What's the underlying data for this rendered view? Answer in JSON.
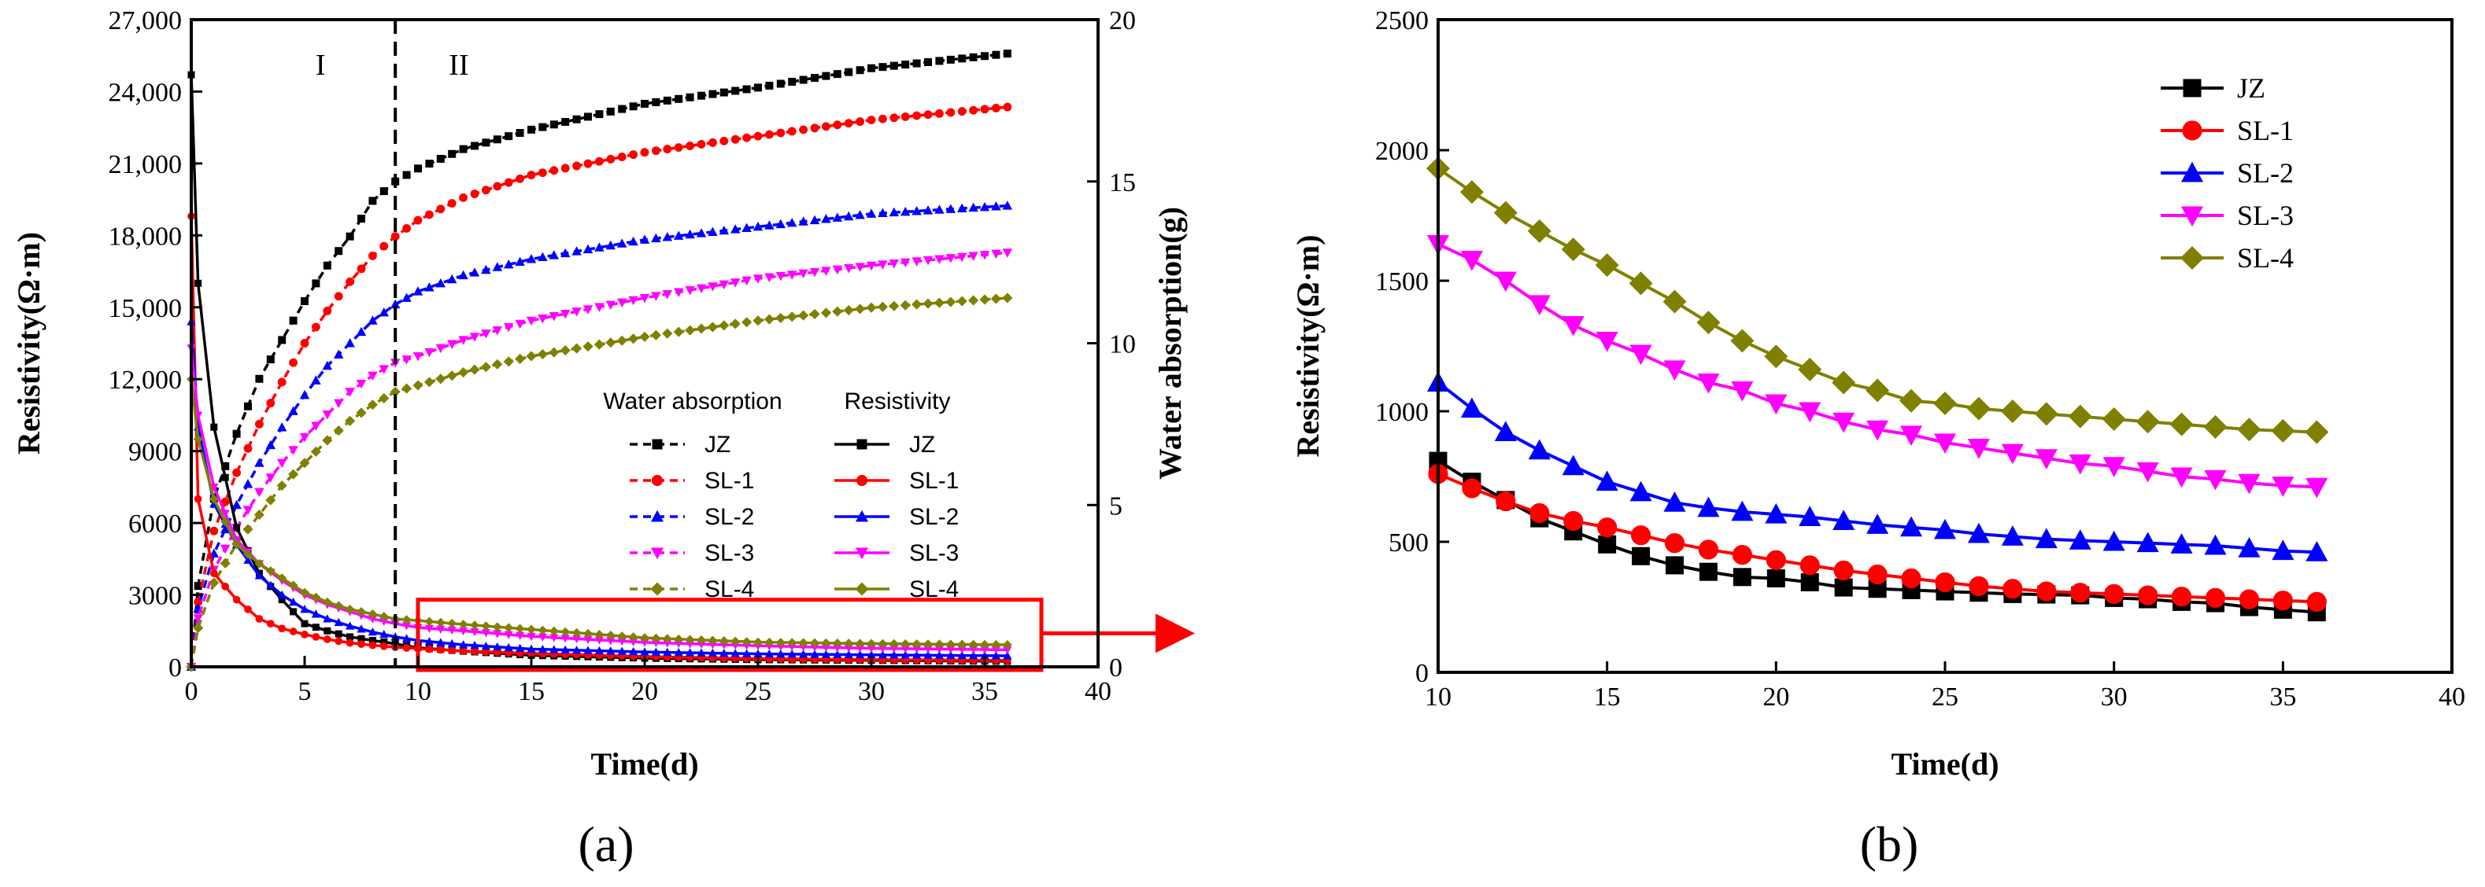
{
  "panel_labels": {
    "a": "(a)",
    "b": "(b)"
  },
  "chart_data": [
    {
      "id": "a",
      "type": "line",
      "title": "",
      "xlabel": "Time(d)",
      "ylabel": "Resistivity(Ω·m)",
      "y2label": "Water absorption(g)",
      "xlim": [
        0,
        40
      ],
      "ylim": [
        0,
        27000
      ],
      "y2lim": [
        0,
        20
      ],
      "xticks": [
        "0",
        "5",
        "10",
        "15",
        "20",
        "25",
        "30",
        "35",
        "40"
      ],
      "yticks": [
        "0",
        "3000",
        "6000",
        "9000",
        "12,000",
        "15,000",
        "18,000",
        "21,000",
        "24,000",
        "27,000"
      ],
      "y2ticks": [
        "0",
        "5",
        "10",
        "15",
        "20"
      ],
      "stage_divider_x": 9,
      "stage_labels": [
        "I",
        "II"
      ],
      "legend_headers": {
        "water": "Water absorption",
        "resistivity": "Resistivity"
      },
      "highlight_box": {
        "x": [
          10,
          37.5
        ],
        "y": [
          0,
          2800
        ]
      },
      "series": [
        {
          "name": "JZ",
          "color": "#000000",
          "marker": "square",
          "resistivity": [
            [
              0,
              24700
            ],
            [
              0.3,
              16000
            ],
            [
              1,
              10000
            ],
            [
              2,
              5800
            ],
            [
              3,
              3900
            ],
            [
              4,
              2800
            ],
            [
              5,
              1800
            ],
            [
              6,
              1500
            ],
            [
              7,
              1250
            ],
            [
              8,
              1100
            ],
            [
              9,
              960
            ],
            [
              10,
              800
            ],
            [
              12,
              650
            ],
            [
              15,
              480
            ],
            [
              20,
              360
            ],
            [
              25,
              300
            ],
            [
              30,
              270
            ],
            [
              36,
              230
            ]
          ],
          "water": [
            [
              0,
              0
            ],
            [
              0.3,
              2.5
            ],
            [
              1,
              5.2
            ],
            [
              2,
              7.2
            ],
            [
              3,
              8.9
            ],
            [
              4,
              10.1
            ],
            [
              5,
              11.3
            ],
            [
              6,
              12.4
            ],
            [
              7,
              13.3
            ],
            [
              8,
              14.4
            ],
            [
              9,
              15.0
            ],
            [
              10,
              15.4
            ],
            [
              12,
              16.0
            ],
            [
              15,
              16.6
            ],
            [
              20,
              17.4
            ],
            [
              25,
              17.9
            ],
            [
              30,
              18.5
            ],
            [
              36,
              18.95
            ]
          ]
        },
        {
          "name": "SL-1",
          "color": "#ff0000",
          "marker": "circle",
          "resistivity": [
            [
              0,
              18800
            ],
            [
              0.3,
              7000
            ],
            [
              1,
              3900
            ],
            [
              2,
              2800
            ],
            [
              3,
              2000
            ],
            [
              4,
              1600
            ],
            [
              5,
              1350
            ],
            [
              6,
              1150
            ],
            [
              7,
              1000
            ],
            [
              8,
              900
            ],
            [
              9,
              820
            ],
            [
              10,
              760
            ],
            [
              12,
              660
            ],
            [
              15,
              560
            ],
            [
              20,
              430
            ],
            [
              25,
              340
            ],
            [
              30,
              300
            ],
            [
              36,
              270
            ]
          ],
          "water": [
            [
              0,
              0
            ],
            [
              0.3,
              2.0
            ],
            [
              1,
              4.2
            ],
            [
              2,
              6.0
            ],
            [
              3,
              7.5
            ],
            [
              4,
              8.8
            ],
            [
              5,
              10.0
            ],
            [
              6,
              11.0
            ],
            [
              7,
              11.9
            ],
            [
              8,
              12.7
            ],
            [
              9,
              13.3
            ],
            [
              10,
              13.8
            ],
            [
              12,
              14.5
            ],
            [
              15,
              15.2
            ],
            [
              20,
              15.9
            ],
            [
              25,
              16.4
            ],
            [
              30,
              16.9
            ],
            [
              36,
              17.3
            ]
          ]
        },
        {
          "name": "SL-2",
          "color": "#0000ff",
          "marker": "triangle-up",
          "resistivity": [
            [
              0,
              14400
            ],
            [
              0.3,
              10000
            ],
            [
              1,
              6800
            ],
            [
              2,
              5100
            ],
            [
              3,
              3800
            ],
            [
              4,
              3000
            ],
            [
              5,
              2400
            ],
            [
              6,
              2000
            ],
            [
              7,
              1700
            ],
            [
              8,
              1450
            ],
            [
              9,
              1250
            ],
            [
              10,
              1100
            ],
            [
              12,
              920
            ],
            [
              15,
              740
            ],
            [
              20,
              620
            ],
            [
              25,
              540
            ],
            [
              30,
              500
            ],
            [
              36,
              460
            ]
          ],
          "water": [
            [
              0,
              0
            ],
            [
              0.3,
              1.8
            ],
            [
              1,
              3.5
            ],
            [
              2,
              5.0
            ],
            [
              3,
              6.3
            ],
            [
              4,
              7.4
            ],
            [
              5,
              8.4
            ],
            [
              6,
              9.3
            ],
            [
              7,
              10.0
            ],
            [
              8,
              10.7
            ],
            [
              9,
              11.2
            ],
            [
              10,
              11.6
            ],
            [
              12,
              12.1
            ],
            [
              15,
              12.6
            ],
            [
              20,
              13.2
            ],
            [
              25,
              13.6
            ],
            [
              30,
              14.0
            ],
            [
              36,
              14.25
            ]
          ]
        },
        {
          "name": "SL-3",
          "color": "#ff00ff",
          "marker": "triangle-down",
          "resistivity": [
            [
              0,
              13300
            ],
            [
              0.3,
              10500
            ],
            [
              1,
              7500
            ],
            [
              2,
              5300
            ],
            [
              3,
              4300
            ],
            [
              4,
              3600
            ],
            [
              5,
              3000
            ],
            [
              6,
              2600
            ],
            [
              7,
              2300
            ],
            [
              8,
              2000
            ],
            [
              9,
              1800
            ],
            [
              10,
              1640
            ],
            [
              12,
              1500
            ],
            [
              15,
              1270
            ],
            [
              20,
              1020
            ],
            [
              25,
              880
            ],
            [
              30,
              770
            ],
            [
              36,
              710
            ]
          ],
          "water": [
            [
              0,
              0
            ],
            [
              0.3,
              1.5
            ],
            [
              1,
              3.0
            ],
            [
              2,
              4.3
            ],
            [
              3,
              5.4
            ],
            [
              4,
              6.3
            ],
            [
              5,
              7.1
            ],
            [
              6,
              7.8
            ],
            [
              7,
              8.5
            ],
            [
              8,
              9.0
            ],
            [
              9,
              9.4
            ],
            [
              10,
              9.6
            ],
            [
              12,
              10.1
            ],
            [
              15,
              10.7
            ],
            [
              20,
              11.4
            ],
            [
              25,
              12.0
            ],
            [
              30,
              12.4
            ],
            [
              36,
              12.8
            ]
          ]
        },
        {
          "name": "SL-4",
          "color": "#808000",
          "marker": "diamond",
          "resistivity": [
            [
              0,
              12000
            ],
            [
              0.3,
              9500
            ],
            [
              1,
              7000
            ],
            [
              2,
              5100
            ],
            [
              3,
              4300
            ],
            [
              4,
              3700
            ],
            [
              5,
              3100
            ],
            [
              6,
              2700
            ],
            [
              7,
              2400
            ],
            [
              8,
              2200
            ],
            [
              9,
              2000
            ],
            [
              10,
              1930
            ],
            [
              12,
              1770
            ],
            [
              15,
              1560
            ],
            [
              20,
              1210
            ],
            [
              25,
              1030
            ],
            [
              30,
              970
            ],
            [
              36,
              920
            ]
          ],
          "water": [
            [
              0,
              0
            ],
            [
              0.3,
              1.2
            ],
            [
              1,
              2.6
            ],
            [
              2,
              3.8
            ],
            [
              3,
              4.7
            ],
            [
              4,
              5.6
            ],
            [
              5,
              6.3
            ],
            [
              6,
              7.0
            ],
            [
              7,
              7.6
            ],
            [
              8,
              8.1
            ],
            [
              9,
              8.5
            ],
            [
              10,
              8.7
            ],
            [
              12,
              9.1
            ],
            [
              15,
              9.6
            ],
            [
              20,
              10.2
            ],
            [
              25,
              10.7
            ],
            [
              30,
              11.1
            ],
            [
              36,
              11.4
            ]
          ]
        }
      ]
    },
    {
      "id": "b",
      "type": "line",
      "title": "",
      "xlabel": "Time(d)",
      "ylabel": "Resistivity(Ω·m)",
      "xlim": [
        10,
        40
      ],
      "ylim": [
        0,
        2500
      ],
      "xticks": [
        "10",
        "15",
        "20",
        "25",
        "30",
        "35",
        "40"
      ],
      "yticks": [
        "0",
        "500",
        "1000",
        "1500",
        "2000",
        "2500"
      ],
      "legend_position": "top-right",
      "series": [
        {
          "name": "JZ",
          "color": "#000000",
          "marker": "square",
          "x": [
            10,
            11,
            12,
            13,
            14,
            15,
            16,
            17,
            18,
            19,
            20,
            21,
            22,
            23,
            24,
            25,
            26,
            27,
            28,
            29,
            30,
            31,
            32,
            33,
            34,
            35,
            36
          ],
          "values": [
            810,
            730,
            660,
            590,
            540,
            490,
            445,
            410,
            385,
            365,
            360,
            345,
            325,
            320,
            315,
            310,
            305,
            300,
            298,
            295,
            285,
            280,
            270,
            265,
            250,
            240,
            230
          ]
        },
        {
          "name": "SL-1",
          "color": "#ff0000",
          "marker": "circle",
          "x": [
            10,
            11,
            12,
            13,
            14,
            15,
            16,
            17,
            18,
            19,
            20,
            21,
            22,
            23,
            24,
            25,
            26,
            27,
            28,
            29,
            30,
            31,
            32,
            33,
            34,
            35,
            36
          ],
          "values": [
            760,
            705,
            655,
            610,
            580,
            555,
            525,
            495,
            470,
            450,
            430,
            410,
            390,
            375,
            360,
            345,
            330,
            320,
            310,
            305,
            300,
            295,
            290,
            285,
            280,
            275,
            270
          ]
        },
        {
          "name": "SL-2",
          "color": "#0000ff",
          "marker": "triangle-up",
          "x": [
            10,
            11,
            12,
            13,
            14,
            15,
            16,
            17,
            18,
            19,
            20,
            21,
            22,
            23,
            24,
            25,
            26,
            27,
            28,
            29,
            30,
            31,
            32,
            33,
            34,
            35,
            36
          ],
          "values": [
            1110,
            1010,
            920,
            850,
            790,
            730,
            690,
            650,
            630,
            615,
            605,
            595,
            580,
            565,
            555,
            545,
            530,
            520,
            510,
            505,
            500,
            495,
            490,
            485,
            475,
            465,
            460
          ]
        },
        {
          "name": "SL-3",
          "color": "#ff00ff",
          "marker": "triangle-down",
          "x": [
            10,
            11,
            12,
            13,
            14,
            15,
            16,
            17,
            18,
            19,
            20,
            21,
            22,
            23,
            24,
            25,
            26,
            27,
            28,
            29,
            30,
            31,
            32,
            33,
            34,
            35,
            36
          ],
          "values": [
            1640,
            1580,
            1500,
            1410,
            1330,
            1270,
            1220,
            1160,
            1110,
            1080,
            1030,
            1000,
            960,
            930,
            910,
            880,
            860,
            840,
            820,
            800,
            790,
            770,
            750,
            740,
            725,
            715,
            710
          ]
        },
        {
          "name": "SL-4",
          "color": "#808000",
          "marker": "diamond",
          "x": [
            10,
            11,
            12,
            13,
            14,
            15,
            16,
            17,
            18,
            19,
            20,
            21,
            22,
            23,
            24,
            25,
            26,
            27,
            28,
            29,
            30,
            31,
            32,
            33,
            34,
            35,
            36
          ],
          "values": [
            1930,
            1840,
            1760,
            1690,
            1620,
            1560,
            1490,
            1420,
            1340,
            1270,
            1210,
            1160,
            1110,
            1080,
            1040,
            1030,
            1010,
            1000,
            990,
            980,
            970,
            960,
            950,
            940,
            930,
            925,
            920
          ]
        }
      ]
    }
  ]
}
